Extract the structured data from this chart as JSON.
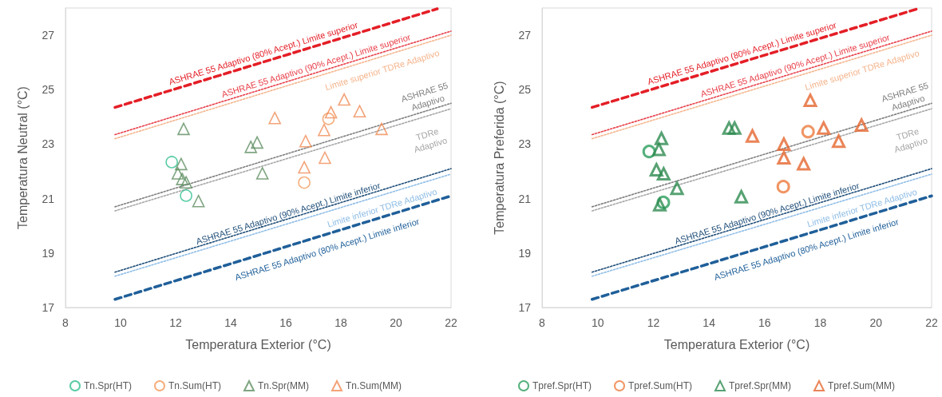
{
  "chart_data": [
    {
      "type": "scatter",
      "xlabel": "Temperatura Exterior (°C)",
      "ylabel": "Temperatura Neutral (°C)",
      "xlim": [
        8,
        22
      ],
      "xticks": [
        8,
        10,
        12,
        14,
        16,
        18,
        20,
        22
      ],
      "ylim": [
        17,
        28
      ],
      "yticks": [
        17,
        19,
        21,
        23,
        25,
        27
      ],
      "grid": false,
      "legend": "bottom",
      "series": [
        {
          "type": "line",
          "name": "ASHRAE 55 Adaptivo (80% Acept.) Limite superior",
          "color": "#e41e26",
          "line_style": "dashed",
          "marker": "none",
          "x": [
            9.8,
            21.5
          ],
          "values": [
            24.35,
            27.97
          ]
        },
        {
          "type": "line",
          "name": "ASHRAE 55 Adaptivo (90% Acept.) Limite superior",
          "color": "#e8404a",
          "line_style": "dotted",
          "marker": "none",
          "x": [
            9.8,
            22
          ],
          "values": [
            23.35,
            27.15
          ]
        },
        {
          "type": "line",
          "name": "Limite superior TDRe Adaptivo",
          "color": "#f5b48c",
          "line_style": "dotted",
          "marker": "none",
          "x": [
            9.8,
            22
          ],
          "values": [
            23.2,
            27.0
          ]
        },
        {
          "type": "line",
          "name": "ASHRAE 55\nAdaptivo",
          "color": "#7f7f7f",
          "line_style": "dotted",
          "marker": "none",
          "x": [
            9.8,
            22
          ],
          "values": [
            20.7,
            24.5
          ]
        },
        {
          "type": "line",
          "name": "TDRe\nAdaptivo",
          "color": "#a6a6a6",
          "line_style": "dotted",
          "marker": "none",
          "x": [
            9.8,
            22
          ],
          "values": [
            20.55,
            24.3
          ]
        },
        {
          "type": "line",
          "name": "ASHRAE 55 Adaptivo (90% Acept.) Limite inferior",
          "color": "#1f4e79",
          "line_style": "dotted",
          "marker": "none",
          "x": [
            9.8,
            22
          ],
          "values": [
            18.3,
            22.1
          ]
        },
        {
          "type": "line",
          "name": "Limite inferior TDRe Adaptivo",
          "color": "#8fbde6",
          "line_style": "dotted",
          "marker": "none",
          "x": [
            9.8,
            22
          ],
          "values": [
            18.15,
            21.9
          ]
        },
        {
          "type": "line",
          "name": "ASHRAE 55 Adaptivo (80% Acept.) Limite inferior",
          "color": "#1f5f99",
          "line_style": "dashed",
          "marker": "none",
          "x": [
            9.8,
            22
          ],
          "values": [
            17.3,
            21.1
          ]
        },
        {
          "name": "Tn.Spr(HT)",
          "color": "#2fbf8f",
          "marker": "circle",
          "x": [
            11.86,
            12.38
          ],
          "values": [
            22.34,
            21.11
          ]
        },
        {
          "name": "Tn.Sum(HT)",
          "color": "#f39a5e",
          "marker": "circle",
          "x": [
            17.55,
            16.67
          ],
          "values": [
            23.93,
            21.59
          ]
        },
        {
          "name": "Tn.Spr(MM)",
          "color": "#5f8f62",
          "marker": "triangle",
          "x": [
            12.29,
            12.2,
            12.08,
            12.24,
            12.38,
            12.83,
            14.73,
            14.96,
            15.15
          ],
          "values": [
            23.56,
            22.27,
            21.93,
            21.72,
            21.6,
            20.91,
            22.9,
            23.06,
            21.93
          ]
        },
        {
          "name": "Tn.Sum(MM)",
          "color": "#f08c56",
          "marker": "triangle",
          "x": [
            15.6,
            16.72,
            16.67,
            17.39,
            17.42,
            17.64,
            18.12,
            18.68,
            19.48
          ],
          "values": [
            23.96,
            23.11,
            22.15,
            23.52,
            22.5,
            24.17,
            24.64,
            24.21,
            23.56
          ]
        }
      ]
    },
    {
      "type": "scatter",
      "xlabel": "Temperatura Exterior (°C)",
      "ylabel": "Temperatura Preferida (°C)",
      "xlim": [
        8,
        22
      ],
      "xticks": [
        8,
        10,
        12,
        14,
        16,
        18,
        20,
        22
      ],
      "ylim": [
        17,
        28
      ],
      "yticks": [
        17,
        19,
        21,
        23,
        25,
        27
      ],
      "grid": false,
      "legend": "bottom",
      "series": [
        {
          "type": "line",
          "name": "ASHRAE 55 Adaptivo (80% Acept.) Limite superior",
          "color": "#e41e26",
          "line_style": "dashed",
          "marker": "none",
          "x": [
            9.8,
            21.5
          ],
          "values": [
            24.35,
            27.97
          ]
        },
        {
          "type": "line",
          "name": "ASHRAE 55 Adaptivo (90% Acept.) Limite superior",
          "color": "#e8404a",
          "line_style": "dotted",
          "marker": "none",
          "x": [
            9.8,
            22
          ],
          "values": [
            23.35,
            27.15
          ]
        },
        {
          "type": "line",
          "name": "Limite superior TDRe Adaptivo",
          "color": "#f5b48c",
          "line_style": "dotted",
          "marker": "none",
          "x": [
            9.8,
            22
          ],
          "values": [
            23.2,
            27.0
          ]
        },
        {
          "type": "line",
          "name": "ASHRAE 55\nAdaptivo",
          "color": "#7f7f7f",
          "line_style": "dotted",
          "marker": "none",
          "x": [
            9.8,
            22
          ],
          "values": [
            20.7,
            24.5
          ]
        },
        {
          "type": "line",
          "name": "TDRe\nAdaptivo",
          "color": "#a6a6a6",
          "line_style": "dotted",
          "marker": "none",
          "x": [
            9.8,
            22
          ],
          "values": [
            20.55,
            24.3
          ]
        },
        {
          "type": "line",
          "name": "ASHRAE 55 Adaptivo (90% Acept.) Limite inferior",
          "color": "#1f4e79",
          "line_style": "dotted",
          "marker": "none",
          "x": [
            9.8,
            22
          ],
          "values": [
            18.3,
            22.1
          ]
        },
        {
          "type": "line",
          "name": "Limite inferior TDRe Adaptivo",
          "color": "#8fbde6",
          "line_style": "dotted",
          "marker": "none",
          "x": [
            9.8,
            22
          ],
          "values": [
            18.15,
            21.9
          ]
        },
        {
          "type": "line",
          "name": "ASHRAE 55 Adaptivo (80% Acept.) Limite inferior",
          "color": "#1f5f99",
          "line_style": "dashed",
          "marker": "none",
          "x": [
            9.8,
            22
          ],
          "values": [
            17.3,
            21.1
          ]
        },
        {
          "name": "Tpref.Spr(HT)",
          "color": "#2a9d5c",
          "marker": "circle",
          "x": [
            11.85,
            12.36
          ],
          "values": [
            22.73,
            20.86
          ]
        },
        {
          "name": "Tpref.Sum(HT)",
          "color": "#ec7a3c",
          "marker": "circle",
          "x": [
            16.67,
            17.56
          ],
          "values": [
            21.44,
            23.46
          ]
        },
        {
          "name": "Tpref.Spr(MM)",
          "color": "#2e8b50",
          "marker": "triangle",
          "x": [
            12.29,
            12.2,
            12.11,
            12.37,
            12.85,
            12.23,
            14.72,
            14.92,
            15.16
          ],
          "values": [
            23.21,
            22.81,
            22.06,
            21.91,
            21.38,
            20.78,
            23.59,
            23.59,
            21.07
          ]
        },
        {
          "name": "Tpref.Sum(MM)",
          "color": "#e5652e",
          "marker": "triangle",
          "x": [
            15.56,
            16.69,
            16.69,
            17.4,
            17.64,
            18.12,
            18.66,
            19.48
          ],
          "values": [
            23.3,
            23.0,
            22.5,
            22.28,
            24.61,
            23.59,
            23.11,
            23.7
          ]
        }
      ]
    }
  ]
}
